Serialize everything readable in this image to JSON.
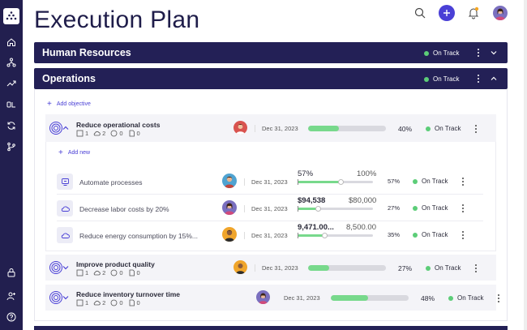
{
  "page": {
    "title": "Execution Plan"
  },
  "colors": {
    "sidebar": "#221f4f",
    "band": "#232056",
    "accent": "#4a40d6",
    "on_track": "#5ccd78",
    "progress": "#78d98c"
  },
  "sidebar": {
    "icons": [
      "logo-icon",
      "home-icon",
      "hierarchy-icon",
      "trending-up-icon",
      "okr-icon",
      "refresh-icon",
      "branch-icon",
      "lock-icon",
      "user-add-icon",
      "help-icon"
    ]
  },
  "sections": [
    {
      "title": "Human Resources",
      "status": "On Track"
    },
    {
      "title": "Operations",
      "status": "On Track"
    }
  ],
  "operations": {
    "add_objective": "Add objective",
    "objectives": [
      {
        "name": "Reduce operational costs",
        "metrics": [
          "1",
          "2",
          "0",
          "0"
        ],
        "date": "Dec 31, 2023",
        "progress": 0.4,
        "pct": "40%",
        "status": "On Track"
      },
      {
        "name": "Improve product quality",
        "metrics": [
          "1",
          "2",
          "0",
          "0"
        ],
        "date": "Dec 31, 2023",
        "progress": 0.27,
        "pct": "27%",
        "status": "On Track"
      },
      {
        "name": "Reduce inventory turnover time",
        "metrics": [
          "1",
          "2",
          "0",
          "0"
        ],
        "date": "Dec 31, 2023",
        "progress": 0.48,
        "pct": "48%",
        "status": "On Track"
      }
    ],
    "add_new": "Add new",
    "key_results": [
      {
        "name": "Automate processes",
        "date": "Dec 31, 2023",
        "current": "57%",
        "target": "100%",
        "progress": 0.57,
        "pct": "57%",
        "status": "On Track"
      },
      {
        "name": "Decrease labor costs by 20%",
        "date": "Dec 31, 2023",
        "current": "$94,538",
        "target": "$80,000",
        "progress": 0.27,
        "pct": "27%",
        "status": "On Track"
      },
      {
        "name": "Reduce energy consumption by 15%...",
        "date": "Dec 31, 2023",
        "current": "9,471.00...",
        "target": "8,500.00",
        "progress": 0.35,
        "pct": "35%",
        "status": "On Track"
      }
    ]
  }
}
